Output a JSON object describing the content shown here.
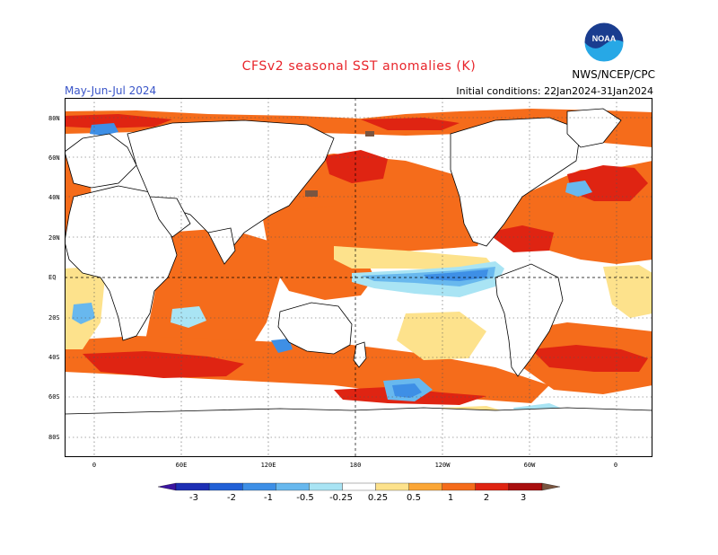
{
  "title": "CFSv2 seasonal SST anomalies (K)",
  "season": "May-Jun-Jul 2024",
  "initial_conditions": "Initial conditions: 22Jan2024-31Jan2024",
  "agency": "NWS/NCEP/CPC",
  "logo_text": "NOAA",
  "colors": {
    "title": "#e8242a",
    "season": "#3a55c8",
    "ocean_neutral": "#ffffff",
    "anomaly_pos_1": "#fde28c",
    "anomaly_pos_2": "#fba636",
    "anomaly_pos_3": "#f56c1b",
    "anomaly_pos_4": "#df2412",
    "anomaly_pos_5": "#a80f0f",
    "anomaly_pos_6": "#7a5540",
    "anomaly_neg_1": "#a9e4f4",
    "anomaly_neg_2": "#68b8ee",
    "anomaly_neg_3": "#3e8fe6",
    "anomaly_neg_4": "#2160d6",
    "anomaly_neg_5": "#1d2fb4",
    "anomaly_neg_6": "#3b14a0"
  },
  "map": {
    "lat_labels": [
      "80N",
      "60N",
      "40N",
      "20N",
      "EQ",
      "20S",
      "40S",
      "60S",
      "80S"
    ],
    "lon_labels": [
      "0",
      "60E",
      "120E",
      "180",
      "120W",
      "60W",
      "0"
    ]
  },
  "colorbar": {
    "labels": [
      "-3",
      "-2",
      "-1",
      "-0.5",
      "-0.25",
      "0.25",
      "0.5",
      "1",
      "2",
      "3"
    ],
    "colors": [
      "#3b14a0",
      "#1d2fb4",
      "#2160d6",
      "#3e8fe6",
      "#68b8ee",
      "#a9e4f4",
      "#ffffff",
      "#fde28c",
      "#fba636",
      "#f56c1b",
      "#df2412",
      "#a80f0f",
      "#7a5540"
    ]
  }
}
